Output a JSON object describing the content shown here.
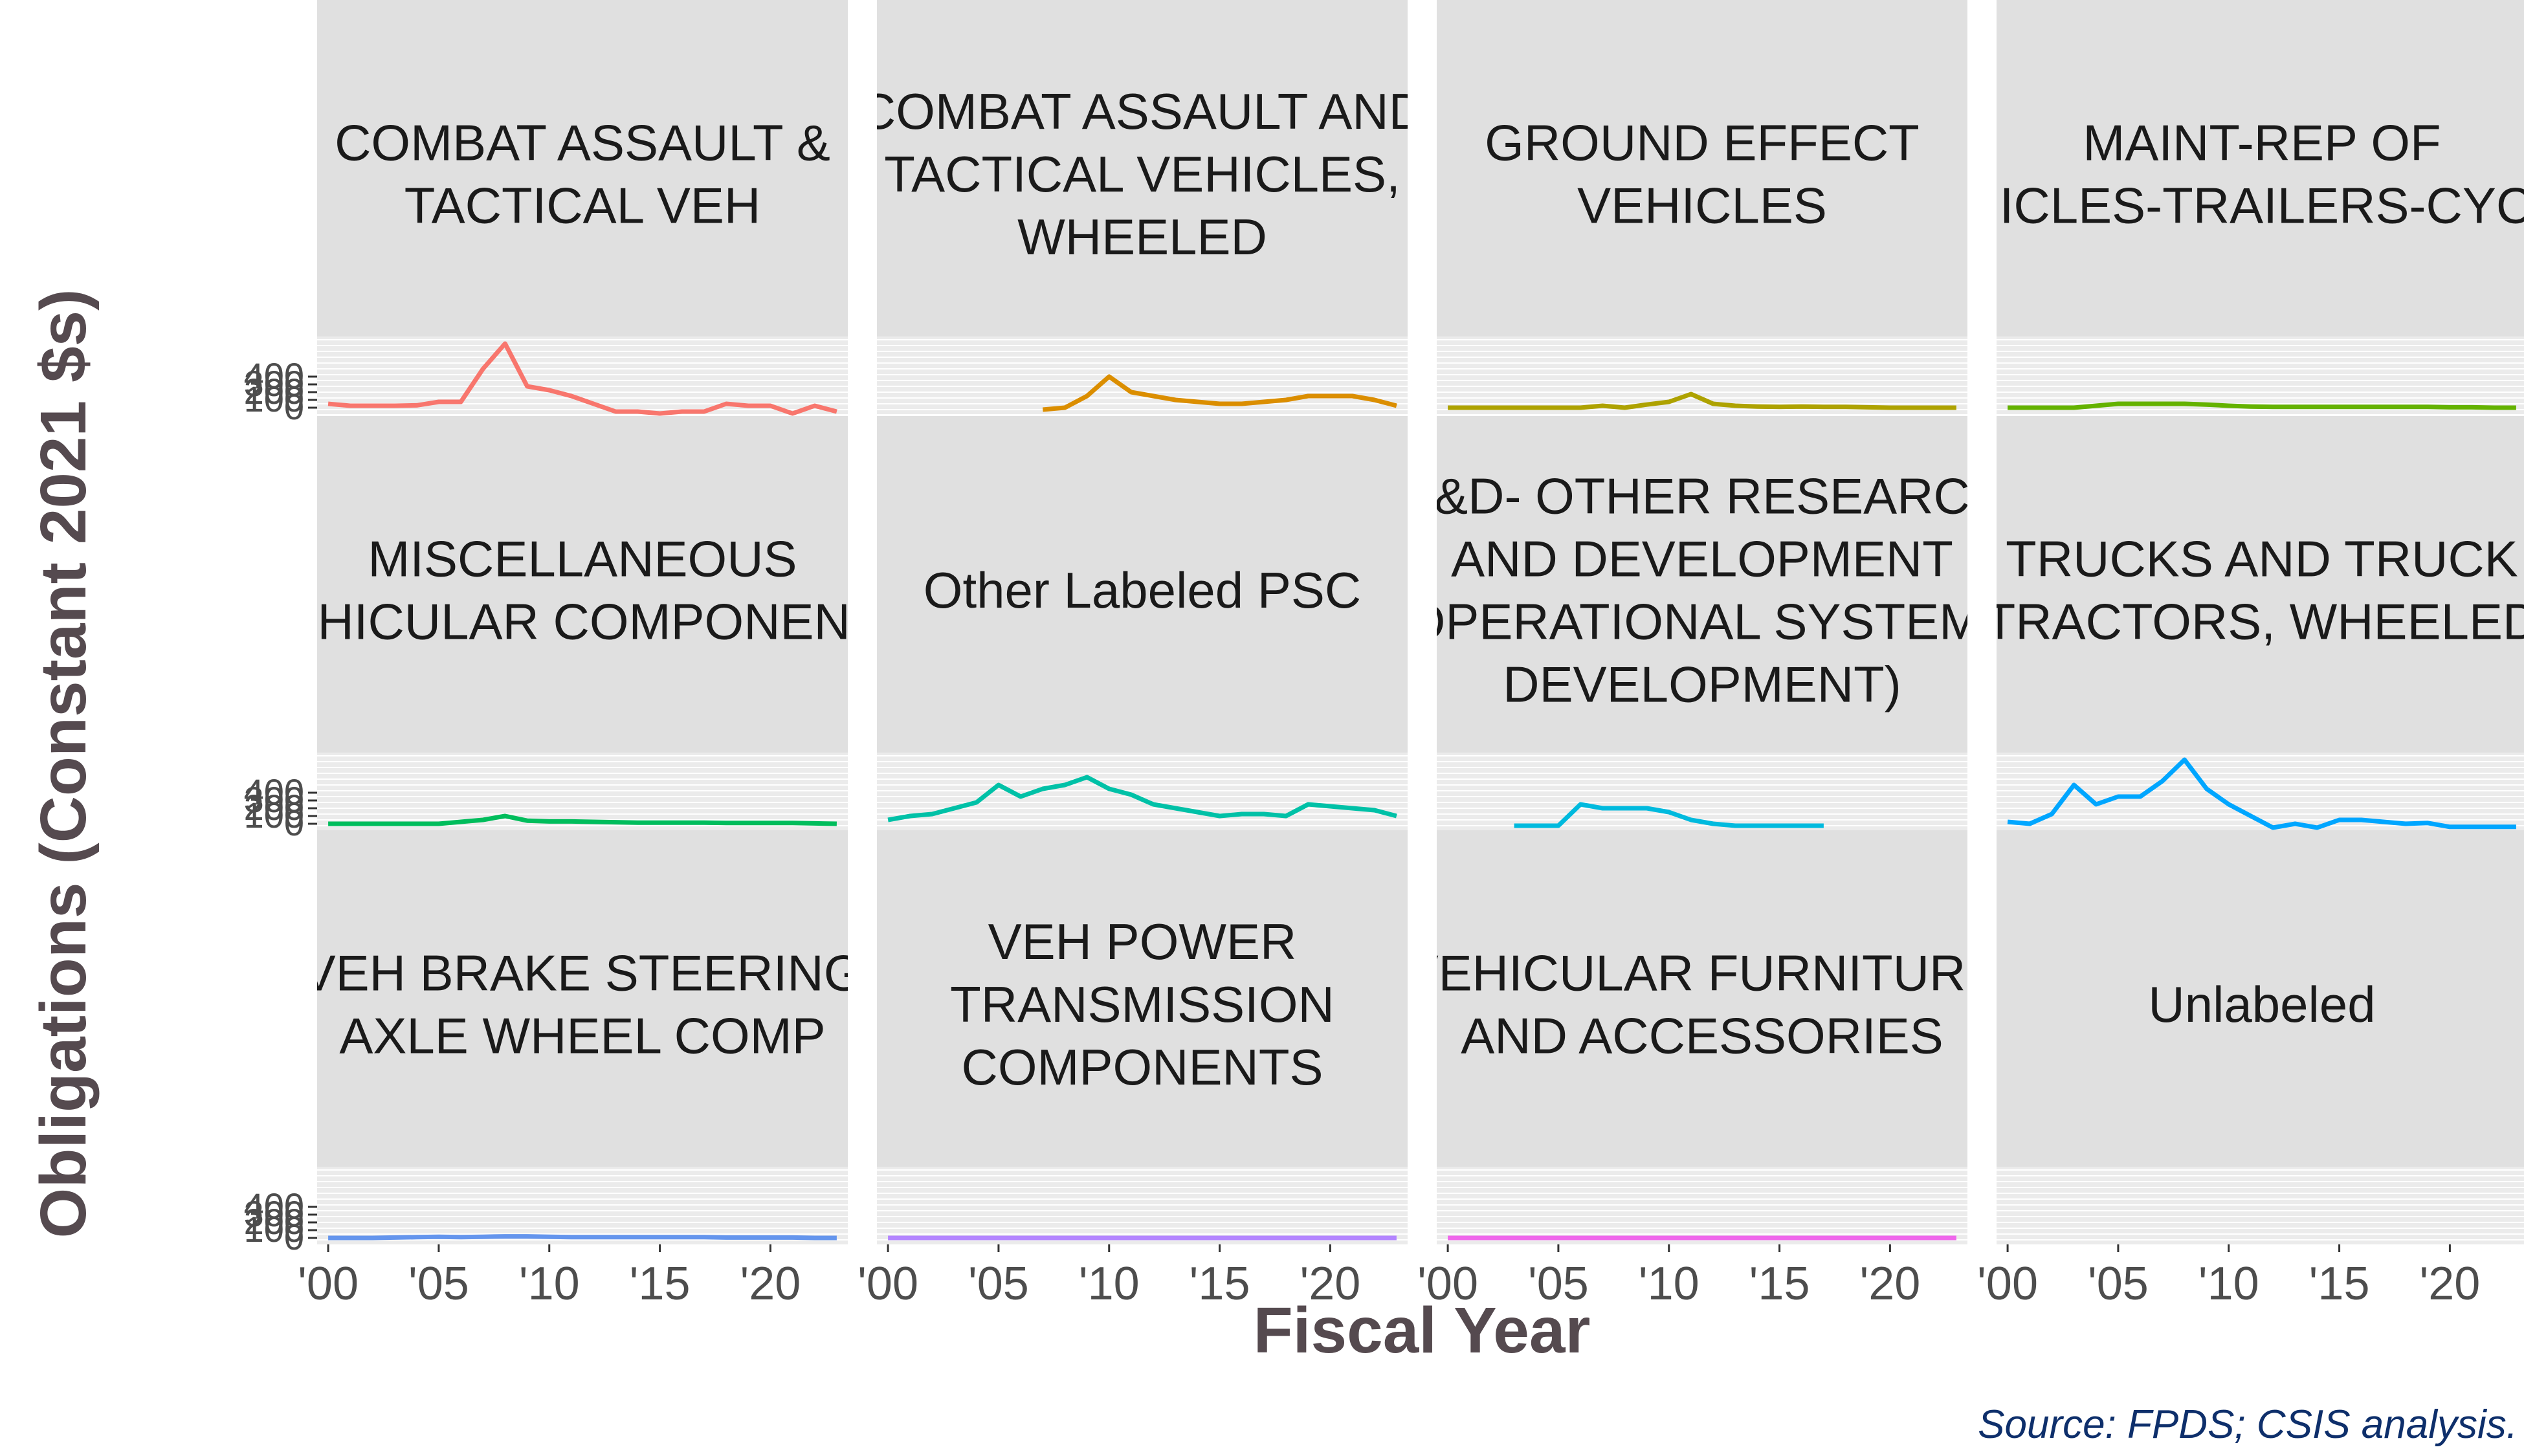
{
  "chart_data": {
    "type": "line",
    "ylabel": "Obligations (Constant 2021 $s)",
    "xlabel": "Fiscal Year",
    "caption": "Source: FPDS; CSIS analysis.",
    "x_tick_labels": [
      "'00",
      "'05",
      "'10",
      "'15",
      "'20"
    ],
    "x_ticks": [
      2000,
      2005,
      2010,
      2015,
      2020
    ],
    "xlim": [
      1999.5,
      2023.5
    ],
    "y_tick_labels": [
      "0",
      "100",
      "200",
      "300",
      "400"
    ],
    "y_ticks": [
      0,
      100,
      200,
      300,
      400
    ],
    "ylim": [
      0,
      8000
    ],
    "panels": [
      {
        "title": "COMBAT ASSAULT & TACTICAL VEH",
        "color": "#F8766D",
        "x": [
          2000,
          2001,
          2002,
          2003,
          2004,
          2005,
          2006,
          2007,
          2008,
          2009,
          2010,
          2011,
          2012,
          2013,
          2014,
          2015,
          2016,
          2017,
          2018,
          2019,
          2020,
          2021,
          2022,
          2023
        ],
        "y": [
          100,
          50,
          50,
          50,
          60,
          150,
          150,
          1000,
          1650,
          550,
          450,
          300,
          100,
          -100,
          -100,
          -150,
          -100,
          -100,
          100,
          50,
          50,
          -150,
          50,
          -100
        ]
      },
      {
        "title": "COMBAT ASSAULT AND TACTICAL VEHICLES, WHEELED",
        "color": "#DB8E00",
        "x": [
          2007,
          2008,
          2009,
          2010,
          2011,
          2012,
          2013,
          2014,
          2015,
          2016,
          2017,
          2018,
          2019,
          2020,
          2021,
          2022,
          2023
        ],
        "y": [
          -50,
          0,
          300,
          800,
          400,
          300,
          200,
          150,
          100,
          100,
          150,
          200,
          300,
          300,
          300,
          200,
          50
        ]
      },
      {
        "title": "GROUND EFFECT VEHICLES",
        "color": "#AEA200",
        "x": [
          2000,
          2001,
          2002,
          2003,
          2004,
          2005,
          2006,
          2007,
          2008,
          2009,
          2010,
          2011,
          2012,
          2013,
          2014,
          2015,
          2016,
          2017,
          2018,
          2019,
          2020,
          2021,
          2022,
          2023
        ],
        "y": [
          0,
          0,
          0,
          0,
          0,
          0,
          0,
          50,
          0,
          80,
          150,
          350,
          100,
          50,
          30,
          20,
          30,
          20,
          20,
          10,
          0,
          0,
          0,
          0
        ]
      },
      {
        "title": "MAINT-REP OF VEHICLES-TRAILERS-CYCLES",
        "color": "#64B200",
        "x": [
          2000,
          2001,
          2002,
          2003,
          2004,
          2005,
          2006,
          2007,
          2008,
          2009,
          2010,
          2011,
          2012,
          2013,
          2014,
          2015,
          2016,
          2017,
          2018,
          2019,
          2020,
          2021,
          2022,
          2023
        ],
        "y": [
          0,
          0,
          0,
          0,
          50,
          100,
          100,
          100,
          100,
          80,
          50,
          30,
          20,
          20,
          20,
          20,
          20,
          20,
          20,
          20,
          10,
          10,
          0,
          0
        ]
      },
      {
        "title": "MISCELLANEOUS VEHICULAR COMPONENTS",
        "color": "#00BD5C",
        "x": [
          2000,
          2001,
          2002,
          2003,
          2004,
          2005,
          2006,
          2007,
          2008,
          2009,
          2010,
          2011,
          2012,
          2013,
          2014,
          2015,
          2016,
          2017,
          2018,
          2019,
          2020,
          2021,
          2022,
          2023
        ],
        "y": [
          0,
          0,
          0,
          0,
          0,
          0,
          50,
          100,
          200,
          80,
          60,
          60,
          50,
          40,
          30,
          30,
          30,
          30,
          20,
          20,
          20,
          20,
          10,
          0
        ]
      },
      {
        "title": "Other Labeled PSC",
        "color": "#00C1A7",
        "x": [
          2000,
          2001,
          2002,
          2003,
          2004,
          2005,
          2006,
          2007,
          2008,
          2009,
          2010,
          2011,
          2012,
          2013,
          2014,
          2015,
          2016,
          2017,
          2018,
          2019,
          2020,
          2021,
          2022,
          2023
        ],
        "y": [
          100,
          200,
          250,
          400,
          550,
          1000,
          700,
          900,
          1000,
          1200,
          900,
          750,
          500,
          400,
          300,
          200,
          250,
          250,
          200,
          500,
          450,
          400,
          350,
          200
        ]
      },
      {
        "title": "R&D- OTHER RESEARCH AND DEVELOPMENT (OPERATIONAL SYSTEMS DEVELOPMENT)",
        "color": "#00BADE",
        "x": [
          2003,
          2004,
          2005,
          2006,
          2007,
          2008,
          2009,
          2010,
          2011,
          2012,
          2013,
          2014,
          2015,
          2016,
          2017
        ],
        "y": [
          -50,
          -50,
          -50,
          500,
          400,
          400,
          400,
          300,
          100,
          0,
          -50,
          -50,
          -50,
          -50,
          -50
        ]
      },
      {
        "title": "TRUCKS AND TRUCK TRACTORS, WHEELED",
        "color": "#00A6FF",
        "x": [
          2000,
          2001,
          2002,
          2003,
          2004,
          2005,
          2006,
          2007,
          2008,
          2009,
          2010,
          2011,
          2012,
          2013,
          2014,
          2015,
          2016,
          2017,
          2018,
          2019,
          2020,
          2021,
          2022,
          2023
        ],
        "y": [
          50,
          0,
          250,
          1000,
          500,
          700,
          700,
          1100,
          1650,
          900,
          500,
          200,
          -100,
          0,
          -100,
          100,
          100,
          50,
          0,
          20,
          -80,
          -80,
          -80,
          -80
        ]
      },
      {
        "title": "VEH BRAKE STEERING AXLE WHEEL COMP",
        "color": "#6495ED",
        "x": [
          2000,
          2001,
          2002,
          2003,
          2004,
          2005,
          2006,
          2007,
          2008,
          2009,
          2010,
          2011,
          2012,
          2013,
          2014,
          2015,
          2016,
          2017,
          2018,
          2019,
          2020,
          2021,
          2022,
          2023
        ],
        "y": [
          0,
          0,
          0,
          10,
          20,
          30,
          20,
          30,
          40,
          40,
          30,
          20,
          20,
          20,
          20,
          20,
          20,
          20,
          10,
          10,
          10,
          10,
          0,
          0
        ]
      },
      {
        "title": "VEH POWER TRANSMISSION COMPONENTS",
        "color": "#B385FF",
        "x": [
          2000,
          2001,
          2002,
          2003,
          2004,
          2005,
          2006,
          2007,
          2008,
          2009,
          2010,
          2011,
          2012,
          2013,
          2014,
          2015,
          2016,
          2017,
          2018,
          2019,
          2020,
          2021,
          2022,
          2023
        ],
        "y": [
          0,
          0,
          0,
          0,
          0,
          0,
          0,
          0,
          0,
          0,
          0,
          0,
          0,
          0,
          0,
          0,
          0,
          0,
          0,
          0,
          0,
          0,
          0,
          0
        ]
      },
      {
        "title": "VEHICULAR FURNITURE AND ACCESSORIES",
        "color": "#EF67EB",
        "x": [
          2000,
          2001,
          2002,
          2003,
          2004,
          2005,
          2006,
          2007,
          2008,
          2009,
          2010,
          2011,
          2012,
          2013,
          2014,
          2015,
          2016,
          2017,
          2018,
          2019,
          2020,
          2021,
          2022,
          2023
        ],
        "y": [
          0,
          0,
          0,
          0,
          0,
          0,
          0,
          0,
          0,
          0,
          0,
          0,
          0,
          0,
          0,
          0,
          0,
          0,
          0,
          0,
          0,
          0,
          0,
          0
        ]
      },
      {
        "title": "Unlabeled",
        "color": "#FF63B6",
        "x": [],
        "y": []
      }
    ]
  }
}
